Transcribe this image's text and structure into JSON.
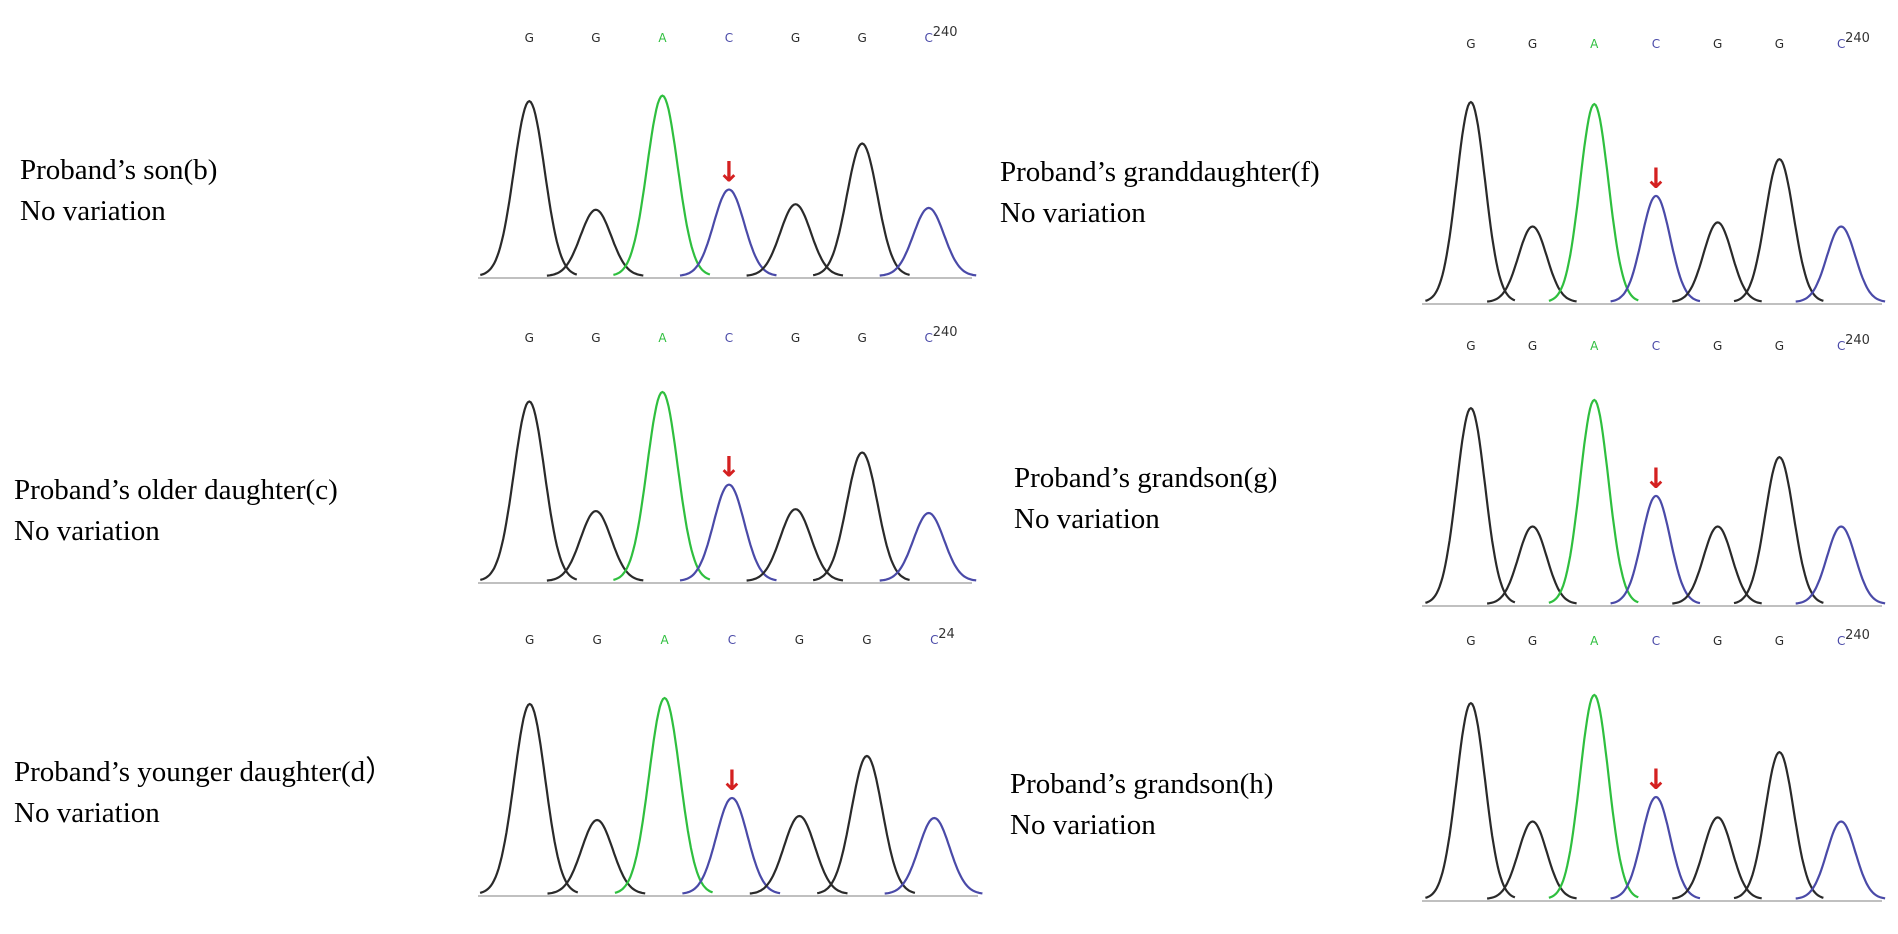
{
  "colors": {
    "black": "#2a2a2a",
    "green": "#2fbf3f",
    "blue": "#4a4aa8",
    "red": "#d42020"
  },
  "panels": [
    {
      "id": "b",
      "title": "Proband’s son(b)",
      "subtitle": "No variation",
      "bases": [
        "G",
        "G",
        "A",
        "C",
        "G",
        "G",
        "C"
      ],
      "position_label": "240",
      "peak_heights": [
        0.95,
        0.36,
        0.98,
        0.47,
        0.39,
        0.72,
        0.37
      ],
      "marker": "↓"
    },
    {
      "id": "c",
      "title": "Proband’s older daughter(c)",
      "subtitle": "No variation",
      "bases": [
        "G",
        "G",
        "A",
        "C",
        "G",
        "G",
        "C"
      ],
      "position_label": "240",
      "peak_heights": [
        0.95,
        0.37,
        1.0,
        0.51,
        0.38,
        0.68,
        0.36
      ],
      "marker": "↓"
    },
    {
      "id": "d",
      "title": "Proband’s younger daughter(d）",
      "subtitle": "No variation",
      "bases": [
        "G",
        "G",
        "A",
        "C",
        "G",
        "G",
        "C"
      ],
      "position_label": "24",
      "peak_heights": [
        0.95,
        0.37,
        0.98,
        0.48,
        0.39,
        0.69,
        0.38
      ],
      "marker": "↓"
    },
    {
      "id": "f",
      "title": "Proband’s granddaughter(f)",
      "subtitle": "No variation",
      "bases": [
        "G",
        "G",
        "A",
        "C",
        "G",
        "G",
        "C"
      ],
      "position_label": "240",
      "peak_heights": [
        0.98,
        0.37,
        0.97,
        0.52,
        0.39,
        0.7,
        0.37
      ],
      "marker": "↓"
    },
    {
      "id": "g",
      "title": "Proband’s grandson(g)",
      "subtitle": "No variation",
      "bases": [
        "G",
        "G",
        "A",
        "C",
        "G",
        "G",
        "C"
      ],
      "position_label": "240",
      "peak_heights": [
        0.96,
        0.38,
        1.0,
        0.53,
        0.38,
        0.72,
        0.38
      ],
      "marker": "↓"
    },
    {
      "id": "h",
      "title": "Proband’s grandson(h)",
      "subtitle": "No variation",
      "bases": [
        "G",
        "G",
        "A",
        "C",
        "G",
        "G",
        "C"
      ],
      "position_label": "240",
      "peak_heights": [
        0.96,
        0.38,
        1.0,
        0.5,
        0.4,
        0.72,
        0.38
      ],
      "marker": "↓"
    }
  ]
}
